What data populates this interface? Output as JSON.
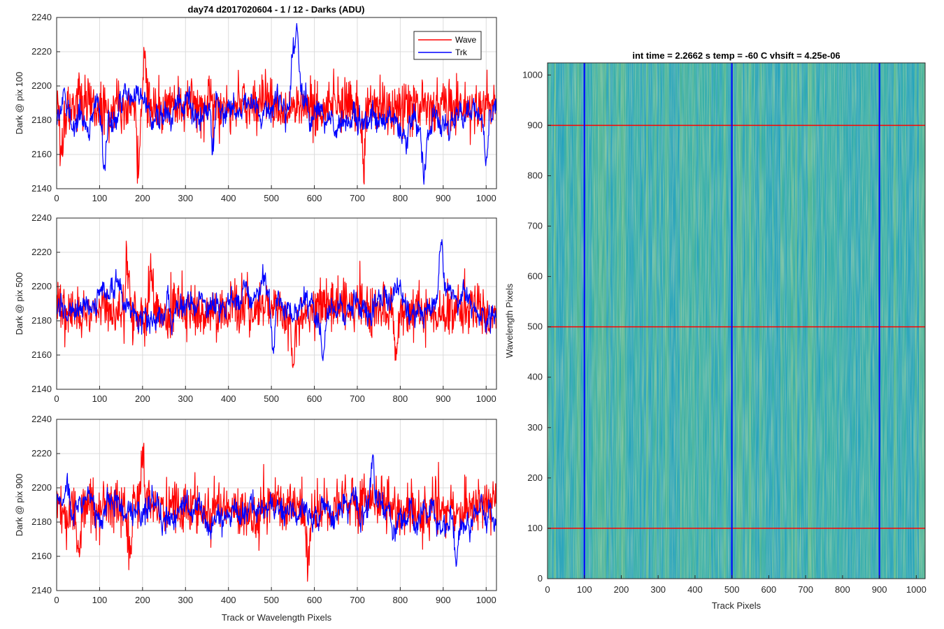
{
  "figure_title": "day74 d2017020604 - 1 / 12 - Darks (ADU)",
  "legend": {
    "entries": [
      "Wave",
      "Trk"
    ],
    "placement": "top-right"
  },
  "colors": {
    "wave": "#ff0000",
    "trk": "#0000ff",
    "grid": "#dcdcdc"
  },
  "chart_data": [
    {
      "type": "line",
      "ylabel": "Dark @ pix 100",
      "xlabel": "",
      "xlim": [
        0,
        1024
      ],
      "ylim": [
        2140,
        2240
      ],
      "xticks": [
        0,
        100,
        200,
        300,
        400,
        500,
        600,
        700,
        800,
        900,
        1000
      ],
      "yticks": [
        2140,
        2160,
        2180,
        2200,
        2220,
        2240
      ],
      "grid": true,
      "series": [
        {
          "name": "Wave",
          "color": "#ff0000",
          "mean": 2188,
          "noise_sd": 9,
          "features": [
            [
              205,
              2224
            ],
            [
              12,
              2153
            ],
            [
              190,
              2155
            ],
            [
              715,
              2157
            ]
          ]
        },
        {
          "name": "Trk",
          "color": "#0000ff",
          "mean": 2184,
          "noise_sd": 6,
          "features": [
            [
              110,
              2150
            ],
            [
              550,
              2225
            ],
            [
              560,
              2233
            ],
            [
              365,
              2155
            ],
            [
              855,
              2150
            ],
            [
              1000,
              2160
            ]
          ]
        }
      ]
    },
    {
      "type": "line",
      "ylabel": "Dark @ pix 500",
      "xlabel": "",
      "xlim": [
        0,
        1024
      ],
      "ylim": [
        2140,
        2240
      ],
      "xticks": [
        0,
        100,
        200,
        300,
        400,
        500,
        600,
        700,
        800,
        900,
        1000
      ],
      "yticks": [
        2140,
        2160,
        2180,
        2200,
        2220,
        2240
      ],
      "grid": true,
      "series": [
        {
          "name": "Wave",
          "color": "#ff0000",
          "mean": 2186,
          "noise_sd": 9,
          "features": [
            [
              165,
              2220
            ],
            [
              220,
              2220
            ],
            [
              550,
              2156
            ],
            [
              790,
              2158
            ]
          ]
        },
        {
          "name": "Trk",
          "color": "#0000ff",
          "mean": 2190,
          "noise_sd": 6,
          "features": [
            [
              260,
              2215
            ],
            [
              505,
              2160
            ],
            [
              620,
              2165
            ],
            [
              895,
              2225
            ]
          ]
        }
      ]
    },
    {
      "type": "line",
      "ylabel": "Dark @ pix 900",
      "xlabel": "Track or Wavelength Pixels",
      "xlim": [
        0,
        1024
      ],
      "ylim": [
        2140,
        2240
      ],
      "xticks": [
        0,
        100,
        200,
        300,
        400,
        500,
        600,
        700,
        800,
        900,
        1000
      ],
      "yticks": [
        2140,
        2160,
        2180,
        2200,
        2220,
        2240
      ],
      "grid": true,
      "series": [
        {
          "name": "Wave",
          "color": "#ff0000",
          "mean": 2188,
          "noise_sd": 9,
          "features": [
            [
              200,
              2221
            ],
            [
              50,
              2155
            ],
            [
              170,
              2157
            ],
            [
              585,
              2153
            ]
          ]
        },
        {
          "name": "Trk",
          "color": "#0000ff",
          "mean": 2187,
          "noise_sd": 6,
          "features": [
            [
              735,
              2221
            ],
            [
              930,
              2157
            ],
            [
              25,
              2205
            ]
          ]
        }
      ]
    },
    {
      "type": "heatmap",
      "title": "int time = 2.2662 s    temp = -60 C    vhsift = 4.25e-06",
      "xlabel": "Track Pixels",
      "ylabel": "Wavelength Pixels",
      "xlim": [
        0,
        1024
      ],
      "ylim": [
        0,
        1024
      ],
      "xticks": [
        0,
        100,
        200,
        300,
        400,
        500,
        600,
        700,
        800,
        900,
        1000
      ],
      "yticks": [
        0,
        100,
        200,
        300,
        400,
        500,
        600,
        700,
        800,
        900,
        1000
      ],
      "colormap": "parula",
      "vertical_markers": {
        "color": "#0000ff",
        "x": [
          100,
          500,
          900
        ]
      },
      "horizontal_markers": {
        "color": "#ff0000",
        "y": [
          100,
          500,
          900
        ]
      }
    }
  ]
}
